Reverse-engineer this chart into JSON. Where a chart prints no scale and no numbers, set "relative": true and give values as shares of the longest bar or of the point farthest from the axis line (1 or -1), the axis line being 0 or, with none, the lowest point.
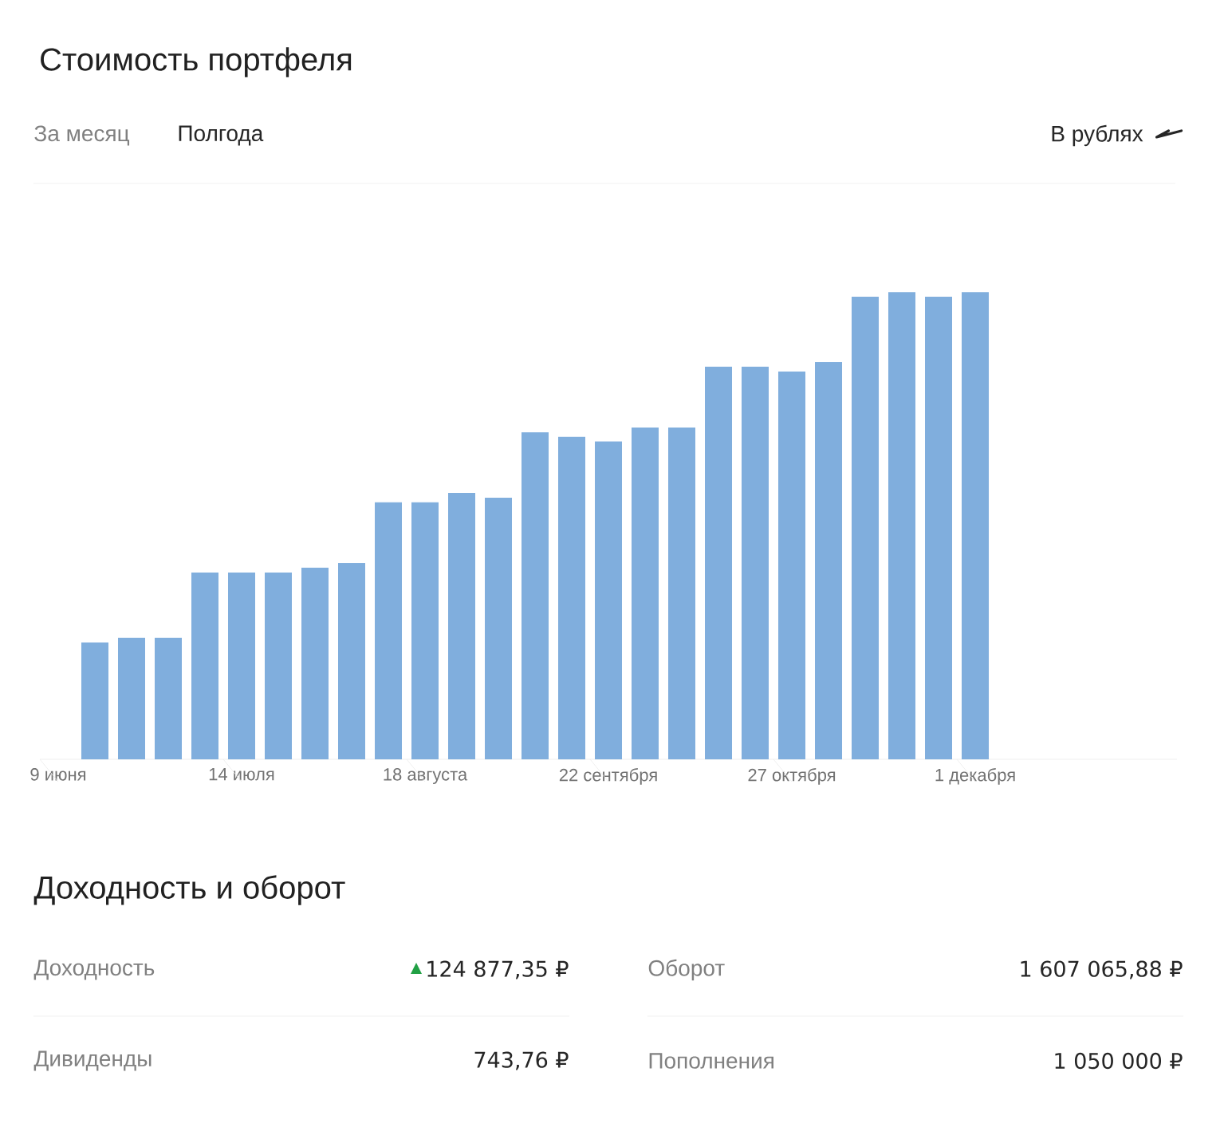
{
  "chart_data": [
    {
      "type": "bar",
      "title": "Стоимость портфеля",
      "relative": true,
      "color": "#80aedd",
      "categories": [
        "9 июня",
        null,
        null,
        null,
        null,
        "14 июля",
        null,
        null,
        null,
        null,
        "18 августа",
        null,
        null,
        null,
        null,
        "22 сентября",
        null,
        null,
        null,
        null,
        "27 октября",
        null,
        null,
        null,
        null,
        "1 декабря",
        null,
        null,
        null,
        null,
        null
      ],
      "values": [
        null,
        0.25,
        0.26,
        0.26,
        0.4,
        0.4,
        0.4,
        0.41,
        0.42,
        0.55,
        0.55,
        0.57,
        0.56,
        0.7,
        0.69,
        0.68,
        0.71,
        0.71,
        0.84,
        0.84,
        0.83,
        0.85,
        0.99,
        1.0,
        0.99,
        1.0,
        null,
        null,
        null,
        null,
        null
      ],
      "annotations": [
        "За месяц",
        "Полгода",
        "В рублях"
      ]
    },
    {
      "type": "other",
      "title": "Доходность и оборот",
      "annotations": [
        "Доходность",
        "124 877,35 ₽",
        "Оборот",
        "1 607 065,88 ₽",
        "Дивиденды",
        "743,76 ₽",
        "Пополнения",
        "1 050 000 ₽"
      ]
    }
  ]
}
